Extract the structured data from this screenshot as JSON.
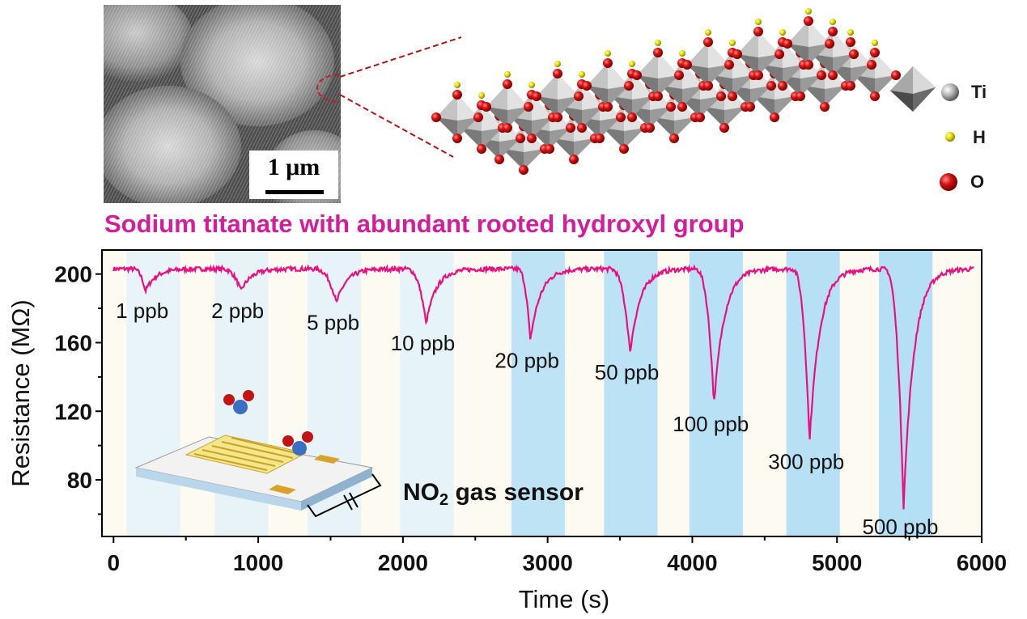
{
  "sem_image": {
    "scale_label": "1 μm",
    "description_icon": "sem-micrograph"
  },
  "crystal_legend": {
    "items": [
      {
        "label": "Ti",
        "color": "#bdbdbd"
      },
      {
        "label": "H",
        "color": "#e8e000"
      },
      {
        "label": "O",
        "color": "#d41515"
      }
    ]
  },
  "subtitle": "Sodium titanate with abundant rooted hydroxyl group",
  "inset": {
    "label_main": "NO",
    "label_sub": "2",
    "label_rest": " gas sensor"
  },
  "colors": {
    "trace": "#e8117f",
    "subtitle": "#d21e9a",
    "band_light": "#e1f1fa",
    "band_strong": "#b5dff5",
    "band_cream": "#fdfaf1"
  },
  "chart_data": {
    "type": "line",
    "xlabel": "Time (s)",
    "ylabel": "Resistance (MΩ)",
    "xlim": [
      -80,
      6000
    ],
    "ylim": [
      47,
      214
    ],
    "xticks": [
      0,
      1000,
      2000,
      3000,
      4000,
      5000,
      6000
    ],
    "yticks": [
      80,
      120,
      160,
      200
    ],
    "baseline": 203,
    "exposures": [
      {
        "label": "1 ppb",
        "start": 90,
        "end": 460,
        "min_time": 220,
        "min_value": 190
      },
      {
        "label": "2 ppb",
        "start": 700,
        "end": 1070,
        "min_time": 880,
        "min_value": 190
      },
      {
        "label": "5 ppb",
        "start": 1340,
        "end": 1710,
        "min_time": 1540,
        "min_value": 183
      },
      {
        "label": "10 ppb",
        "start": 1980,
        "end": 2350,
        "min_time": 2160,
        "min_value": 171
      },
      {
        "label": "20 ppb",
        "start": 2750,
        "end": 3120,
        "min_time": 2880,
        "min_value": 161
      },
      {
        "label": "50 ppb",
        "start": 3390,
        "end": 3760,
        "min_time": 3570,
        "min_value": 154
      },
      {
        "label": "100 ppb",
        "start": 3980,
        "end": 4350,
        "min_time": 4150,
        "min_value": 124
      },
      {
        "label": "300 ppb",
        "start": 4650,
        "end": 5020,
        "min_time": 4810,
        "min_value": 102
      },
      {
        "label": "500 ppb",
        "start": 5290,
        "end": 5660,
        "min_time": 5460,
        "min_value": 64
      }
    ]
  }
}
